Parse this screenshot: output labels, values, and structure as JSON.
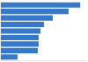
{
  "chart_data": {
    "type": "bar",
    "orientation": "horizontal",
    "categories": [
      null,
      null,
      null,
      null,
      null,
      null,
      null,
      null,
      null
    ],
    "values": [
      9.0,
      7.7,
      5.9,
      4.9,
      4.5,
      4.3,
      4.3,
      4.2,
      1.9
    ],
    "color": "#3579c8",
    "xlim": [
      0,
      9.5
    ],
    "grid": false,
    "tick_labels": false
  }
}
